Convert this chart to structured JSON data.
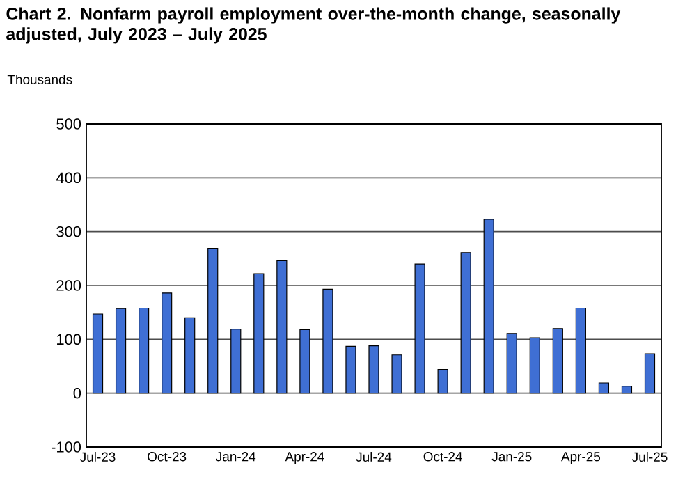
{
  "chart_data": {
    "type": "bar",
    "title": "Chart 2. Nonfarm payroll employment over-the-month change, seasonally adjusted, July 2023 – July 2025",
    "ylabel": "Thousands",
    "categories": [
      "Jul-23",
      null,
      null,
      "Oct-23",
      null,
      null,
      "Jan-24",
      null,
      null,
      "Apr-24",
      null,
      null,
      "Jul-24",
      null,
      null,
      "Oct-24",
      null,
      null,
      "Jan-25",
      null,
      null,
      "Apr-25",
      null,
      null,
      "Jul-25"
    ],
    "values": [
      147,
      157,
      158,
      186,
      140,
      269,
      119,
      222,
      246,
      118,
      193,
      87,
      88,
      71,
      240,
      44,
      261,
      323,
      111,
      103,
      120,
      158,
      19,
      13,
      73
    ],
    "color": "#3f6fd4",
    "ylim": [
      -100,
      500
    ],
    "yticks": [
      -100,
      0,
      100,
      200,
      300,
      400,
      500
    ],
    "grid": "y"
  }
}
